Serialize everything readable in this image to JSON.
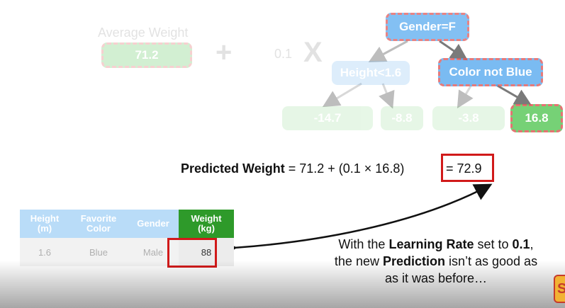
{
  "top": {
    "average_label": "Average Weight",
    "average_value": "71.2",
    "plus": "+",
    "learning_rate": "0.1",
    "times": "X"
  },
  "tree": {
    "root": "Gender=F",
    "left": "Height<1.6",
    "right": "Color not Blue",
    "leaves": [
      "-14.7",
      "-8.8",
      "-3.8",
      "16.8"
    ]
  },
  "formula": {
    "bold_label": "Predicted Weight",
    "expression": " = 71.2 + (0.1 × 16.8)",
    "result": "= 72.9"
  },
  "table": {
    "headers": [
      "Height (m)",
      "Favorite Color",
      "Gender",
      "Weight (kg)"
    ],
    "row": [
      "1.6",
      "Blue",
      "Male",
      "88"
    ]
  },
  "caption": {
    "t1": "With the ",
    "b1": "Learning Rate",
    "t2": " set to ",
    "b2": "0.1",
    "t3": ", the new ",
    "b3": "Prediction",
    "t4": " isn’t as good as as it was before…"
  },
  "colors": {
    "leaf_green": "#5fc95f",
    "node_blue": "#5aabf0",
    "highlight_red": "#d11a1a",
    "weight_header_green": "#2e9a2a"
  }
}
